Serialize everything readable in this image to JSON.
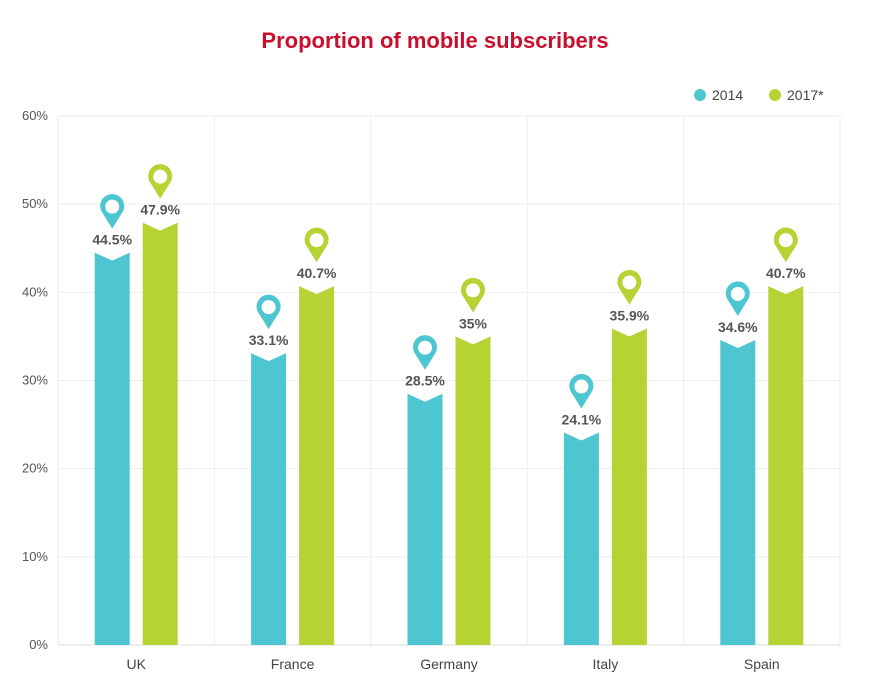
{
  "chart_data": {
    "type": "bar",
    "title": "Proportion of mobile subscribers",
    "categories": [
      "UK",
      "France",
      "Germany",
      "Italy",
      "Spain"
    ],
    "series": [
      {
        "name": "2014",
        "color": "#4dc6d2",
        "values": [
          44.5,
          33.1,
          28.5,
          24.1,
          34.6
        ],
        "labels": [
          "44.5%",
          "33.1%",
          "28.5%",
          "24.1%",
          "34.6%"
        ]
      },
      {
        "name": "2017*",
        "color": "#b6d334",
        "values": [
          47.9,
          40.7,
          35,
          35.9,
          40.7
        ],
        "labels": [
          "47.9%",
          "40.7%",
          "35%",
          "35.9%",
          "40.7%"
        ]
      }
    ],
    "ylim": [
      0,
      60
    ],
    "yticks": [
      0,
      10,
      20,
      30,
      40,
      50,
      60
    ],
    "ytick_labels": [
      "0%",
      "10%",
      "20%",
      "30%",
      "40%",
      "50%",
      "60%"
    ],
    "xlabel": "",
    "ylabel": "",
    "grid": true,
    "legend_position": "top-right",
    "marker_icon": "map-pin-icon"
  },
  "colors": {
    "title": "#c8102e",
    "grid": "#eeeeee",
    "axis_text": "#555555",
    "value_label": "#555555"
  }
}
